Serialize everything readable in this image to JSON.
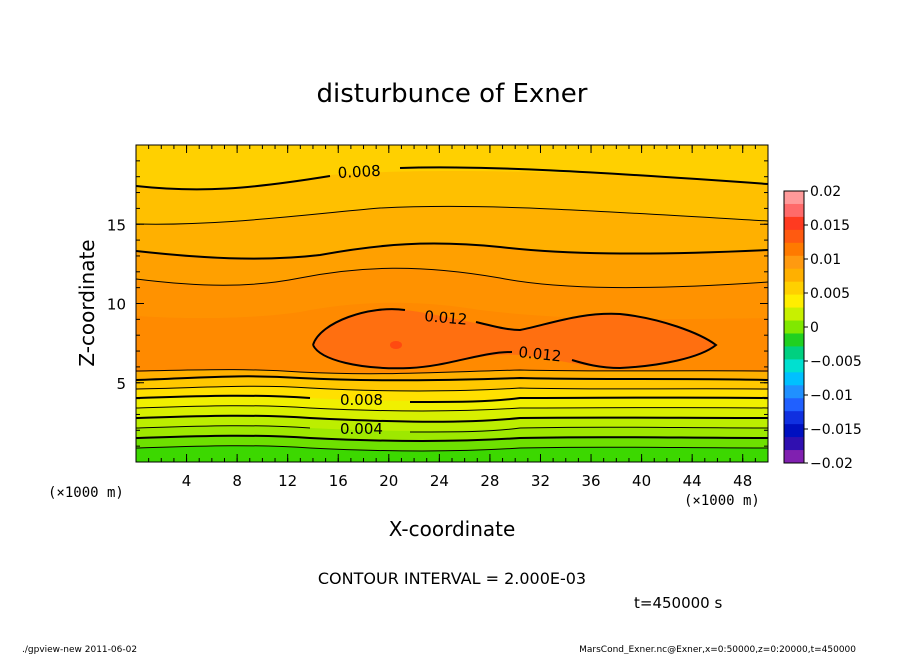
{
  "chart_data": {
    "type": "contour",
    "title": "disturbunce of Exner",
    "xlabel": "X-coordinate",
    "ylabel": "Z-coordinate",
    "x_unit_left": "(×1000 m)",
    "x_unit_right": "(×1000 m)",
    "xlim": [
      0,
      50
    ],
    "ylim": [
      0,
      20
    ],
    "x_ticks": [
      "4",
      "8",
      "12",
      "16",
      "20",
      "24",
      "28",
      "32",
      "36",
      "40",
      "44",
      "48"
    ],
    "y_ticks": [
      "5",
      "10",
      "15"
    ],
    "contour_interval_text": "CONTOUR INTERVAL = 2.000E-03",
    "time_text": "t=450000  s",
    "contour_labels": [
      "0.008",
      "0.012",
      "0.012",
      "0.008",
      "0.004"
    ],
    "colorbar": {
      "ticks": [
        "0.02",
        "0.015",
        "0.01",
        "0.005",
        "0",
        "−0.005",
        "−0.01",
        "−0.015",
        "−0.02"
      ],
      "levels": [
        {
          "value": 0.02,
          "color": "#ff9a9a"
        },
        {
          "value": 0.018,
          "color": "#ff6a6a"
        },
        {
          "value": 0.016,
          "color": "#ff3a20"
        },
        {
          "value": 0.014,
          "color": "#ff5a10"
        },
        {
          "value": 0.012,
          "color": "#ff7a00"
        },
        {
          "value": 0.01,
          "color": "#ff9a10"
        },
        {
          "value": 0.008,
          "color": "#ffb000"
        },
        {
          "value": 0.006,
          "color": "#ffd000"
        },
        {
          "value": 0.004,
          "color": "#ffee00"
        },
        {
          "value": 0.002,
          "color": "#c8f000"
        },
        {
          "value": 0.0,
          "color": "#80e800"
        },
        {
          "value": -0.002,
          "color": "#20d020"
        },
        {
          "value": -0.004,
          "color": "#00d080"
        },
        {
          "value": -0.006,
          "color": "#00e0d0"
        },
        {
          "value": -0.008,
          "color": "#00c0ff"
        },
        {
          "value": -0.01,
          "color": "#2090ff"
        },
        {
          "value": -0.012,
          "color": "#2060ff"
        },
        {
          "value": -0.014,
          "color": "#1030e0"
        },
        {
          "value": -0.016,
          "color": "#0010c0"
        },
        {
          "value": -0.018,
          "color": "#3010b0"
        },
        {
          "value": -0.02,
          "color": "#8020b0"
        }
      ]
    },
    "field_bands": [
      {
        "level": 0.008,
        "color": "#ffd500"
      },
      {
        "level": 0.009,
        "color": "#ffc800"
      },
      {
        "level": 0.01,
        "color": "#ffb300"
      },
      {
        "level": 0.011,
        "color": "#ffa000"
      },
      {
        "level": 0.012,
        "color": "#ff8c00"
      },
      {
        "level": 0.013,
        "color": "#ff6e10"
      }
    ]
  },
  "footer": {
    "left": "./gpview-new   2011-06-02",
    "right": "MarsCond_Exner.nc@Exner,x=0:50000,z=0:20000,t=450000"
  }
}
